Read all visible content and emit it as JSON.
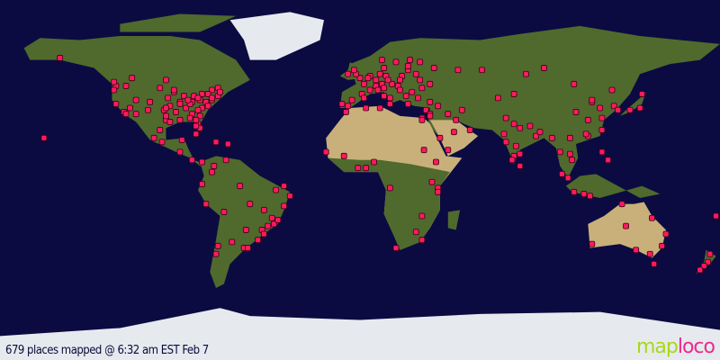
{
  "caption": "679 places mapped @ 6:32 am EST Feb 7",
  "logo": {
    "part1": "map",
    "part2": "loco"
  },
  "colors": {
    "ocean": "#0b0b42",
    "land": "#4f6a2c",
    "desert": "#c9b07a",
    "ice": "#e6eaee",
    "marker": "#ff1a5e"
  },
  "projection": "equirectangular",
  "markers_latlon": [
    [
      61,
      -150
    ],
    [
      47,
      -122
    ],
    [
      45,
      -123
    ],
    [
      38,
      -122
    ],
    [
      34,
      -118
    ],
    [
      33,
      -117
    ],
    [
      36,
      -115
    ],
    [
      40,
      -112
    ],
    [
      33,
      -112
    ],
    [
      39,
      -105
    ],
    [
      41,
      -96
    ],
    [
      35,
      -98
    ],
    [
      30,
      -97
    ],
    [
      29,
      -95
    ],
    [
      32,
      -97
    ],
    [
      30,
      -90
    ],
    [
      33,
      -84
    ],
    [
      36,
      -87
    ],
    [
      39,
      -90
    ],
    [
      42,
      -88
    ],
    [
      42,
      -83
    ],
    [
      40,
      -80
    ],
    [
      40,
      -74
    ],
    [
      42,
      -71
    ],
    [
      39,
      -77
    ],
    [
      36,
      -79
    ],
    [
      35,
      -81
    ],
    [
      28,
      -81
    ],
    [
      26,
      -80
    ],
    [
      44,
      -93
    ],
    [
      43,
      -79
    ],
    [
      45,
      -74
    ],
    [
      46,
      -71
    ],
    [
      49,
      -123
    ],
    [
      51,
      -114
    ],
    [
      50,
      -97
    ],
    [
      41,
      -81
    ],
    [
      39,
      -84
    ],
    [
      38,
      -85
    ],
    [
      37,
      -76
    ],
    [
      44,
      -70
    ],
    [
      43,
      -76
    ],
    [
      35,
      -106
    ],
    [
      47,
      -117
    ],
    [
      45,
      -93
    ],
    [
      32,
      -80
    ],
    [
      31,
      -85
    ],
    [
      34,
      -92
    ],
    [
      37,
      -95
    ],
    [
      40,
      -86
    ],
    [
      41,
      -74
    ],
    [
      38,
      -90
    ],
    [
      36,
      -97
    ],
    [
      30,
      -82
    ],
    [
      27,
      -82
    ],
    [
      46,
      -100
    ],
    [
      19,
      -99
    ],
    [
      21,
      -103
    ],
    [
      25,
      -100
    ],
    [
      20,
      -89
    ],
    [
      14,
      -90
    ],
    [
      10,
      -84
    ],
    [
      9,
      -79
    ],
    [
      18,
      -66
    ],
    [
      23,
      -82
    ],
    [
      19,
      -72
    ],
    [
      10,
      -67
    ],
    [
      4,
      -74
    ],
    [
      7,
      -73
    ],
    [
      -2,
      -79
    ],
    [
      -12,
      -77
    ],
    [
      -16,
      -68
    ],
    [
      -23,
      -46
    ],
    [
      -22,
      -43
    ],
    [
      -19,
      -44
    ],
    [
      -15,
      -48
    ],
    [
      -13,
      -38
    ],
    [
      -8,
      -35
    ],
    [
      -3,
      -38
    ],
    [
      -25,
      -49
    ],
    [
      -30,
      -51
    ],
    [
      -27,
      -48
    ],
    [
      -34,
      -58
    ],
    [
      -31,
      -64
    ],
    [
      -33,
      -71
    ],
    [
      -37,
      -72
    ],
    [
      -34,
      -56
    ],
    [
      -25,
      -57
    ],
    [
      -20,
      -41
    ],
    [
      -5,
      -42
    ],
    [
      -3,
      -60
    ],
    [
      -12,
      -55
    ],
    [
      51,
      0
    ],
    [
      53,
      -2
    ],
    [
      55,
      -3
    ],
    [
      53,
      -6
    ],
    [
      48,
      2
    ],
    [
      45,
      5
    ],
    [
      43,
      1
    ],
    [
      40,
      -4
    ],
    [
      41,
      2
    ],
    [
      38,
      -9
    ],
    [
      37,
      -6
    ],
    [
      52,
      5
    ],
    [
      51,
      4
    ],
    [
      50,
      8
    ],
    [
      52,
      13
    ],
    [
      48,
      11
    ],
    [
      53,
      10
    ],
    [
      47,
      8
    ],
    [
      46,
      12
    ],
    [
      45,
      9
    ],
    [
      42,
      12
    ],
    [
      41,
      15
    ],
    [
      38,
      15
    ],
    [
      48,
      16
    ],
    [
      50,
      14
    ],
    [
      52,
      21
    ],
    [
      50,
      20
    ],
    [
      47,
      19
    ],
    [
      45,
      20
    ],
    [
      44,
      26
    ],
    [
      42,
      23
    ],
    [
      38,
      24
    ],
    [
      41,
      29
    ],
    [
      60,
      11
    ],
    [
      59,
      18
    ],
    [
      60,
      25
    ],
    [
      56,
      12
    ],
    [
      55,
      24
    ],
    [
      57,
      24
    ],
    [
      59,
      30
    ],
    [
      56,
      37
    ],
    [
      55,
      49
    ],
    [
      50,
      30
    ],
    [
      46,
      31
    ],
    [
      48,
      35
    ],
    [
      53,
      28
    ],
    [
      55,
      61
    ],
    [
      56,
      92
    ],
    [
      53,
      83
    ],
    [
      43,
      77
    ],
    [
      41,
      69
    ],
    [
      39,
      35
    ],
    [
      37,
      39
    ],
    [
      35,
      33
    ],
    [
      33,
      35
    ],
    [
      32,
      35
    ],
    [
      31,
      31
    ],
    [
      30,
      31
    ],
    [
      36,
      3
    ],
    [
      34,
      -7
    ],
    [
      36,
      10
    ],
    [
      33,
      44
    ],
    [
      35,
      51
    ],
    [
      30,
      48
    ],
    [
      25,
      55
    ],
    [
      24,
      47
    ],
    [
      21,
      40
    ],
    [
      15,
      44
    ],
    [
      31,
      73
    ],
    [
      28,
      77
    ],
    [
      26,
      80
    ],
    [
      23,
      72
    ],
    [
      19,
      73
    ],
    [
      13,
      80
    ],
    [
      12,
      77
    ],
    [
      22,
      88
    ],
    [
      17,
      78
    ],
    [
      10,
      76
    ],
    [
      7,
      80
    ],
    [
      27,
      85
    ],
    [
      24,
      90
    ],
    [
      21,
      96
    ],
    [
      14,
      100
    ],
    [
      13,
      105
    ],
    [
      21,
      105
    ],
    [
      10,
      106
    ],
    [
      3,
      101
    ],
    [
      1,
      104
    ],
    [
      -6,
      107
    ],
    [
      -7,
      112
    ],
    [
      -8,
      115
    ],
    [
      14,
      121
    ],
    [
      10,
      124
    ],
    [
      22,
      114
    ],
    [
      23,
      113
    ],
    [
      25,
      121
    ],
    [
      31,
      121
    ],
    [
      30,
      114
    ],
    [
      34,
      108
    ],
    [
      39,
      116
    ],
    [
      40,
      116
    ],
    [
      36,
      120
    ],
    [
      45,
      126
    ],
    [
      37,
      127
    ],
    [
      35,
      129
    ],
    [
      35,
      135
    ],
    [
      36,
      140
    ],
    [
      43,
      141
    ],
    [
      48,
      107
    ],
    [
      14,
      -17
    ],
    [
      6,
      -1
    ],
    [
      6,
      3
    ],
    [
      9,
      7
    ],
    [
      12,
      -8
    ],
    [
      -1,
      36
    ],
    [
      -4,
      39
    ],
    [
      9,
      38
    ],
    [
      -6,
      39
    ],
    [
      -18,
      31
    ],
    [
      -26,
      28
    ],
    [
      -34,
      18
    ],
    [
      -30,
      31
    ],
    [
      -4,
      15
    ],
    [
      15,
      32
    ],
    [
      -27,
      153
    ],
    [
      -33,
      151
    ],
    [
      -37,
      145
    ],
    [
      -35,
      138
    ],
    [
      -32,
      116
    ],
    [
      -19,
      146
    ],
    [
      -12,
      131
    ],
    [
      -42,
      147
    ],
    [
      -23,
      133
    ],
    [
      -37,
      175
    ],
    [
      -41,
      174
    ],
    [
      -43,
      172
    ],
    [
      -45,
      170
    ],
    [
      -18,
      178
    ],
    [
      21,
      -158
    ]
  ]
}
